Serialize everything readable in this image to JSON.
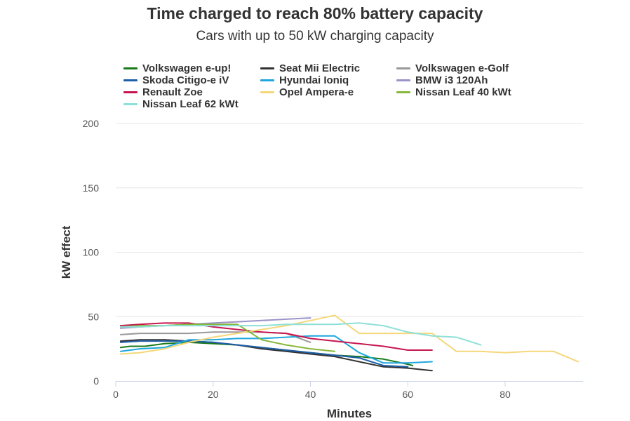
{
  "chart_data": {
    "type": "line",
    "title": "Time charged to reach 80% battery capacity",
    "subtitle": "Cars with up to 50 kW charging capacity",
    "xlabel": "Minutes",
    "ylabel": "kW effect",
    "xlim": [
      0,
      96
    ],
    "ylim": [
      0,
      200
    ],
    "xticks": [
      0,
      20,
      40,
      60,
      80
    ],
    "yticks": [
      0,
      50,
      100,
      150,
      200
    ],
    "grid": "horizontal",
    "legend_position": "top",
    "series": [
      {
        "name": "Volkswagen e-up!",
        "color": "#1a7a1a",
        "points": [
          [
            1,
            26
          ],
          [
            3,
            27
          ],
          [
            6,
            27
          ],
          [
            10,
            29
          ],
          [
            15,
            30
          ],
          [
            20,
            29
          ],
          [
            25,
            28
          ],
          [
            30,
            26
          ],
          [
            35,
            24
          ],
          [
            40,
            22
          ],
          [
            45,
            20
          ],
          [
            50,
            19
          ],
          [
            55,
            17
          ],
          [
            60,
            13
          ],
          [
            61,
            12
          ]
        ]
      },
      {
        "name": "Seat Mii Electric",
        "color": "#333333",
        "points": [
          [
            1,
            31
          ],
          [
            5,
            32
          ],
          [
            10,
            32
          ],
          [
            15,
            31
          ],
          [
            20,
            30
          ],
          [
            25,
            28
          ],
          [
            30,
            25
          ],
          [
            35,
            23
          ],
          [
            40,
            21
          ],
          [
            45,
            19
          ],
          [
            50,
            15
          ],
          [
            55,
            11
          ],
          [
            60,
            10
          ],
          [
            65,
            8
          ]
        ]
      },
      {
        "name": "Volkswagen e-Golf",
        "color": "#999999",
        "points": [
          [
            1,
            36
          ],
          [
            5,
            37
          ],
          [
            10,
            37
          ],
          [
            15,
            37
          ],
          [
            20,
            38
          ],
          [
            25,
            38
          ],
          [
            30,
            38
          ],
          [
            35,
            37
          ],
          [
            40,
            30
          ]
        ]
      },
      {
        "name": "Skoda Citigo-e iV",
        "color": "#1f5fa8",
        "points": [
          [
            1,
            30
          ],
          [
            5,
            31
          ],
          [
            10,
            31
          ],
          [
            15,
            31
          ],
          [
            20,
            30
          ],
          [
            25,
            28
          ],
          [
            30,
            26
          ],
          [
            35,
            24
          ],
          [
            40,
            22
          ],
          [
            45,
            20
          ],
          [
            50,
            18
          ],
          [
            55,
            12
          ],
          [
            60,
            11
          ]
        ]
      },
      {
        "name": "Hyundai Ioniq",
        "color": "#1ea7dd",
        "points": [
          [
            1,
            23
          ],
          [
            5,
            25
          ],
          [
            10,
            26
          ],
          [
            15,
            32
          ],
          [
            20,
            32
          ],
          [
            25,
            33
          ],
          [
            30,
            33
          ],
          [
            35,
            34
          ],
          [
            40,
            35
          ],
          [
            45,
            35
          ],
          [
            50,
            22
          ],
          [
            55,
            14
          ],
          [
            60,
            14
          ],
          [
            65,
            15
          ]
        ]
      },
      {
        "name": "BMW i3 120Ah",
        "color": "#9b93c9",
        "points": [
          [
            1,
            41
          ],
          [
            5,
            42
          ],
          [
            10,
            43
          ],
          [
            15,
            44
          ],
          [
            20,
            45
          ],
          [
            25,
            46
          ],
          [
            30,
            47
          ],
          [
            35,
            48
          ],
          [
            40,
            49
          ]
        ]
      },
      {
        "name": "Renault Zoe",
        "color": "#c7164f",
        "points": [
          [
            1,
            43
          ],
          [
            5,
            44
          ],
          [
            10,
            45
          ],
          [
            15,
            45
          ],
          [
            20,
            42
          ],
          [
            25,
            40
          ],
          [
            30,
            38
          ],
          [
            35,
            37
          ],
          [
            40,
            33
          ],
          [
            45,
            31
          ],
          [
            50,
            29
          ],
          [
            55,
            27
          ],
          [
            60,
            24
          ],
          [
            65,
            24
          ]
        ]
      },
      {
        "name": "Opel Ampera-e",
        "color": "#f5d77a",
        "points": [
          [
            1,
            21
          ],
          [
            5,
            22
          ],
          [
            10,
            25
          ],
          [
            15,
            30
          ],
          [
            20,
            34
          ],
          [
            25,
            37
          ],
          [
            30,
            40
          ],
          [
            35,
            43
          ],
          [
            40,
            47
          ],
          [
            45,
            51
          ],
          [
            50,
            37
          ],
          [
            55,
            37
          ],
          [
            60,
            37
          ],
          [
            65,
            37
          ],
          [
            70,
            23
          ],
          [
            75,
            23
          ],
          [
            80,
            22
          ],
          [
            85,
            23
          ],
          [
            90,
            23
          ],
          [
            95,
            15
          ]
        ]
      },
      {
        "name": "Nissan Leaf 40 kWt",
        "color": "#86b83c",
        "points": [
          [
            1,
            42
          ],
          [
            5,
            43
          ],
          [
            10,
            43
          ],
          [
            15,
            44
          ],
          [
            20,
            44
          ],
          [
            25,
            44
          ],
          [
            30,
            32
          ],
          [
            35,
            28
          ],
          [
            40,
            25
          ],
          [
            45,
            23
          ]
        ]
      },
      {
        "name": "Nissan Leaf 62 kWt",
        "color": "#8ee0d8",
        "points": [
          [
            1,
            42
          ],
          [
            5,
            42
          ],
          [
            10,
            43
          ],
          [
            15,
            43
          ],
          [
            20,
            43
          ],
          [
            25,
            43
          ],
          [
            30,
            43
          ],
          [
            35,
            44
          ],
          [
            40,
            44
          ],
          [
            45,
            44
          ],
          [
            50,
            45
          ],
          [
            55,
            43
          ],
          [
            60,
            38
          ],
          [
            65,
            35
          ],
          [
            70,
            34
          ],
          [
            75,
            28
          ]
        ]
      }
    ]
  }
}
